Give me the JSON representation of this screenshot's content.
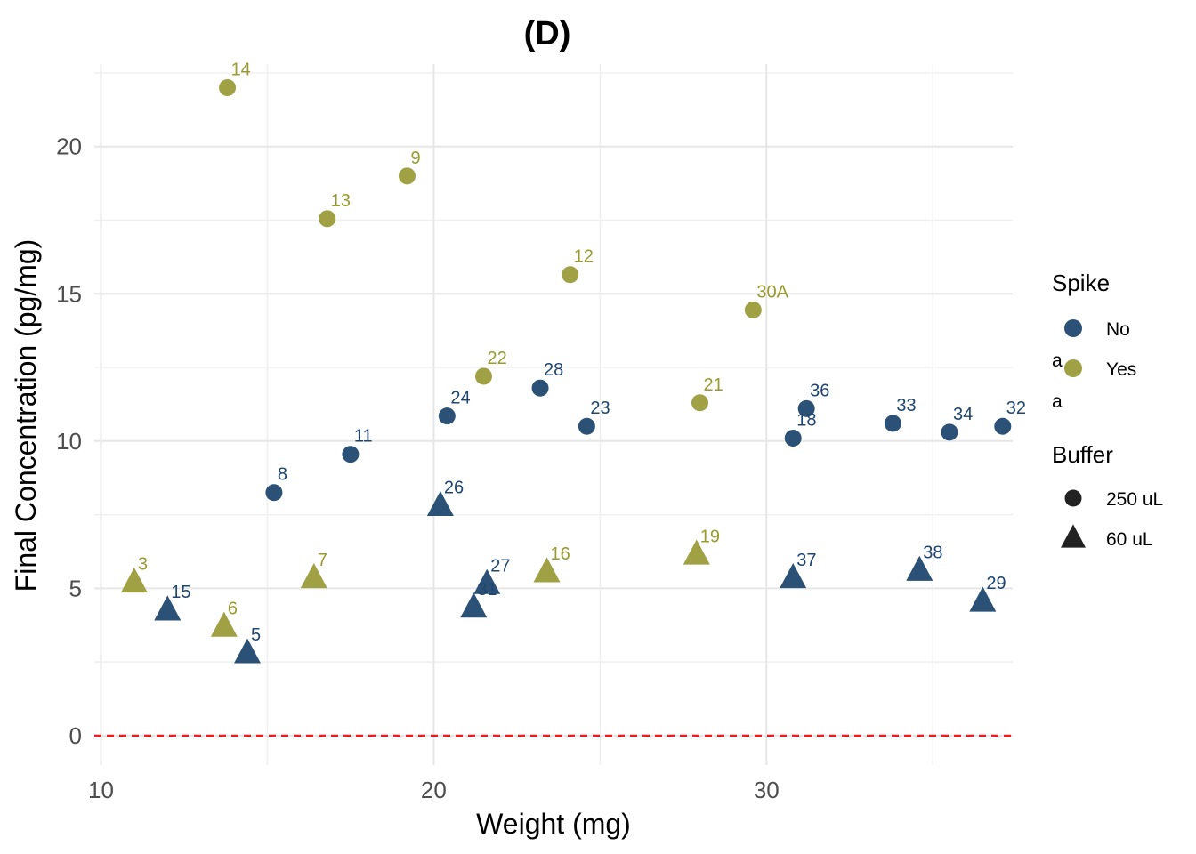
{
  "chart_data": {
    "type": "scatter",
    "title": "(D)",
    "xlabel": "Weight (mg)",
    "ylabel": "Final Concentration (pg/mg)",
    "xlim": [
      9.8,
      37.4
    ],
    "ylim": [
      -1,
      22.8
    ],
    "x_ticks": [
      10,
      20,
      30
    ],
    "y_ticks": [
      0,
      5,
      10,
      15,
      20
    ],
    "grid": true,
    "reference_line": {
      "y": 0,
      "color": "#ee1c1c",
      "style": "dashed"
    },
    "colors": {
      "No": "#2b5276",
      "Yes": "#a0a044"
    },
    "label_colors": {
      "No": "#1f4670",
      "Yes": "#9a9a2e"
    },
    "points": [
      {
        "label": "14",
        "x": 13.8,
        "y": 22.0,
        "spike": "Yes",
        "buffer": "250 uL"
      },
      {
        "label": "13",
        "x": 16.8,
        "y": 17.55,
        "spike": "Yes",
        "buffer": "250 uL"
      },
      {
        "label": "9",
        "x": 19.2,
        "y": 19.0,
        "spike": "Yes",
        "buffer": "250 uL"
      },
      {
        "label": "12",
        "x": 24.1,
        "y": 15.65,
        "spike": "Yes",
        "buffer": "250 uL"
      },
      {
        "label": "30A",
        "x": 29.6,
        "y": 14.45,
        "spike": "Yes",
        "buffer": "250 uL"
      },
      {
        "label": "22",
        "x": 21.5,
        "y": 12.2,
        "spike": "Yes",
        "buffer": "250 uL"
      },
      {
        "label": "21",
        "x": 28.0,
        "y": 11.3,
        "spike": "Yes",
        "buffer": "250 uL"
      },
      {
        "label": "28",
        "x": 23.2,
        "y": 11.8,
        "spike": "No",
        "buffer": "250 uL"
      },
      {
        "label": "24",
        "x": 20.4,
        "y": 10.85,
        "spike": "No",
        "buffer": "250 uL"
      },
      {
        "label": "23",
        "x": 24.6,
        "y": 10.5,
        "spike": "No",
        "buffer": "250 uL"
      },
      {
        "label": "11",
        "x": 17.5,
        "y": 9.55,
        "spike": "No",
        "buffer": "250 uL"
      },
      {
        "label": "8",
        "x": 15.2,
        "y": 8.25,
        "spike": "No",
        "buffer": "250 uL"
      },
      {
        "label": "36",
        "x": 31.2,
        "y": 11.1,
        "spike": "No",
        "buffer": "250 uL"
      },
      {
        "label": "18",
        "x": 30.8,
        "y": 10.1,
        "spike": "No",
        "buffer": "250 uL"
      },
      {
        "label": "33",
        "x": 33.8,
        "y": 10.6,
        "spike": "No",
        "buffer": "250 uL"
      },
      {
        "label": "34",
        "x": 35.5,
        "y": 10.3,
        "spike": "No",
        "buffer": "250 uL"
      },
      {
        "label": "32",
        "x": 37.1,
        "y": 10.5,
        "spike": "No",
        "buffer": "250 uL"
      },
      {
        "label": "26",
        "x": 20.2,
        "y": 7.8,
        "spike": "No",
        "buffer": "60 uL"
      },
      {
        "label": "27",
        "x": 21.6,
        "y": 5.15,
        "spike": "No",
        "buffer": "60 uL"
      },
      {
        "label": "31",
        "x": 21.2,
        "y": 4.35,
        "spike": "No",
        "buffer": "60 uL"
      },
      {
        "label": "15",
        "x": 12.0,
        "y": 4.25,
        "spike": "No",
        "buffer": "60 uL"
      },
      {
        "label": "5",
        "x": 14.4,
        "y": 2.8,
        "spike": "No",
        "buffer": "60 uL"
      },
      {
        "label": "37",
        "x": 30.8,
        "y": 5.35,
        "spike": "No",
        "buffer": "60 uL"
      },
      {
        "label": "38",
        "x": 34.6,
        "y": 5.6,
        "spike": "No",
        "buffer": "60 uL"
      },
      {
        "label": "29",
        "x": 36.5,
        "y": 4.55,
        "spike": "No",
        "buffer": "60 uL"
      },
      {
        "label": "3",
        "x": 11.0,
        "y": 5.2,
        "spike": "Yes",
        "buffer": "60 uL"
      },
      {
        "label": "6",
        "x": 13.7,
        "y": 3.7,
        "spike": "Yes",
        "buffer": "60 uL"
      },
      {
        "label": "7",
        "x": 16.4,
        "y": 5.35,
        "spike": "Yes",
        "buffer": "60 uL"
      },
      {
        "label": "16",
        "x": 23.4,
        "y": 5.55,
        "spike": "Yes",
        "buffer": "60 uL"
      },
      {
        "label": "19",
        "x": 27.9,
        "y": 6.15,
        "spike": "Yes",
        "buffer": "60 uL"
      }
    ],
    "legend": {
      "placement": "right",
      "spike_title": "Spike",
      "spike_items": [
        {
          "key": "No",
          "name": "No",
          "glyph": "a"
        },
        {
          "key": "Yes",
          "name": "Yes",
          "glyph": "a"
        }
      ],
      "buffer_title": "Buffer",
      "buffer_items": [
        {
          "name": "250 uL",
          "shape": "circle"
        },
        {
          "name": "60 uL",
          "shape": "triangle"
        }
      ]
    }
  }
}
